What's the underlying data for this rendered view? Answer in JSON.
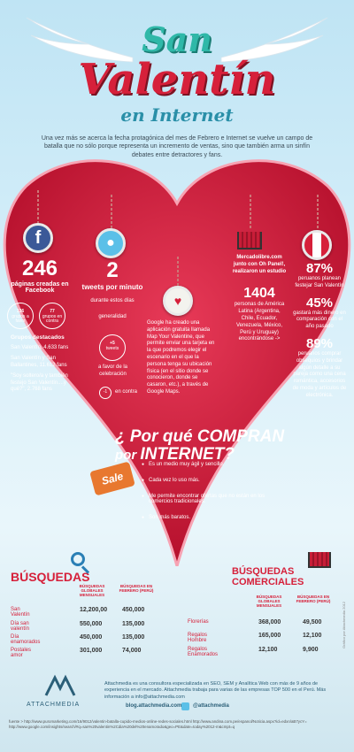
{
  "title": {
    "line1": "San",
    "line2": "Valentín",
    "line3": "en Internet"
  },
  "intro": "Una vez más se acerca la fecha protagónica del mes de Febrero e Internet se vuelve un campo de batalla que no sólo porque representa un incremento de ventas, sino que también arma un sinfín debates entre detractores y fans.",
  "facebook": {
    "number": "246",
    "label": "páginas creadas en Facebook",
    "bubble_favor_num": "136",
    "bubble_favor": "grupos a favor",
    "bubble_contra_num": "77",
    "bubble_contra": "grupos en contra",
    "groups_title": "Grupos destacados",
    "groups": [
      "San Valentín, 4.633 fans",
      "San Valentín y San Ballantines, 11.612 fans",
      "\"Soy soltero/a y también festejo San Valentín....y qué?\", 2.768 fans"
    ]
  },
  "twitter": {
    "number": "2",
    "label": "tweets por minuto",
    "during": "durante estos días",
    "general": "generalidad",
    "pos_num": "+5",
    "pos_label": "tweets",
    "favor_text": "a favor de la celebración",
    "neg_num": "-1",
    "neg_label": "en contra"
  },
  "google": {
    "text": "Google ha creado una aplicación gratuita llamada Map Your Valentine, que permite enviar una tarjeta en la que podremos elegir el escenario en el que la persona tenga su ubicación física (en el sitio donde se conocieron, donde se casaron, etc.), a través de Google Maps."
  },
  "mercadolibre": {
    "text": "Mercadolibre.com junto con Oh Panel!, realizaron un estudio",
    "number": "1404",
    "text2": "personas de América Latina (Argentina, Chile, Ecuador, Venezuela, México, Perú y Uruguay) encontrándose ->"
  },
  "peru": {
    "stat1_num": "87%",
    "stat1_text": "peruanos planean festejar San Valentín",
    "stat2_num": "45%",
    "stat2_text": "gastará más dinero en comparación con el año pasado",
    "stat3_num": "89%",
    "stat3_text": "peruanos comprar obsequios y brindar algún detalle a su pareja como una cena romántica, accesorios de moda y artículos de electrónica."
  },
  "why": {
    "q1": "¿ Por qué ",
    "q2": "COMPRAN",
    "q3": "por ",
    "q4": "INTERNET?",
    "sale_tag": "Sale",
    "items": [
      "Es un medio muy ágil y sencillo.",
      "Cada vez lo uso más.",
      "Me permite encontrar ofertas que no están en los comercios tradicionales.",
      "Son más baratos."
    ]
  },
  "busquedas": {
    "title": "BÚSQUEDAS",
    "h1": "BÚSQUEDAS GLOBALES MENSUALES",
    "h2": "BÚSQUEDAS EN FEBRERO (PERÚ)",
    "rows": [
      {
        "label": "San Valentín",
        "global": "12,200,00",
        "feb": "450,000"
      },
      {
        "label": "Día san valentín",
        "global": "550,000",
        "feb": "135,000"
      },
      {
        "label": "Día enamorados",
        "global": "450,000",
        "feb": "135,000"
      },
      {
        "label": "Postales amor",
        "global": "301,000",
        "feb": "74,000"
      }
    ]
  },
  "comerciales": {
    "title1": "BÚSQUEDAS",
    "title2": "COMERCIALES",
    "h1": "BÚSQUEDAS GLOBALES MENSUALES",
    "h2": "BÚSQUEDAS EN FEBRERO (PERÚ)",
    "rows": [
      {
        "label": "Florerías",
        "global": "368,000",
        "feb": "49,500"
      },
      {
        "label": "Regalos Hombre",
        "global": "165,000",
        "feb": "12,100"
      },
      {
        "label": "Regalos Enamorados",
        "global": "12,100",
        "feb": "9,900"
      }
    ]
  },
  "footer": {
    "brand": "ATTACHMEDIA",
    "text": "Attachmedia es una consultora especializada en SEO, SEM y Analítica Web con más de 9 años de experiencia en el mercado. Attachmedia trabaja para varias de las empresas TOP 500 en el Perú. Más información a info@attachmedia.com",
    "blog": "blog.attachmedia.com",
    "twitter": "@attachmedia",
    "source": "fuente > http://www.puromarketing.com/16/9012/valentin-batalla-cupido-medios-online-redes-sociales.html http://www.andina.com.pe/espanol/Noticia.aspx?id=edxn/aB7ycY= http://www.google.com/insights/search/#q=san%20valentin%2Cdia%20del%20enamorado&geo=PE&date=today%2012-m&cmpt=q",
    "credit": "Gráfico por Attachmedia 2012"
  },
  "colors": {
    "heart": "#d81f3d",
    "title_teal": "#2fb8a8",
    "accent_red": "#d6203a"
  }
}
